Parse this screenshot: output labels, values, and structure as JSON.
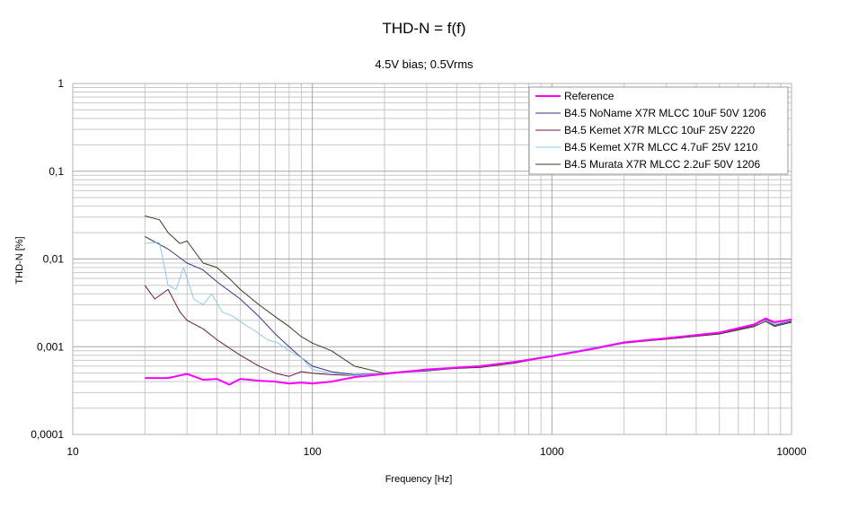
{
  "chart_data": {
    "type": "line",
    "title": "THD-N = f(f)",
    "subtitle": "4.5V bias; 0.5Vrms",
    "xlabel": "Frequency [Hz]",
    "ylabel": "THD-N [%]",
    "x_scale": "log",
    "y_scale": "log",
    "xlim": [
      10,
      10000
    ],
    "ylim": [
      0.0001,
      1
    ],
    "x_ticks": [
      "10",
      "100",
      "1000",
      "10000"
    ],
    "y_ticks": [
      "1",
      "0,1",
      "0,01",
      "0,001",
      "0,0001"
    ],
    "grid": true,
    "legend_position": "top-right",
    "series": [
      {
        "name": "Reference",
        "color": "#ff00ff",
        "x": [
          20,
          25,
          30,
          35,
          40,
          45,
          50,
          60,
          70,
          80,
          90,
          100,
          120,
          150,
          200,
          300,
          500,
          700,
          1000,
          1500,
          2000,
          3000,
          5000,
          7000,
          7800,
          8500,
          10000
        ],
        "y": [
          0.00044,
          0.00044,
          0.00049,
          0.00042,
          0.00043,
          0.00037,
          0.00043,
          0.00041,
          0.0004,
          0.00038,
          0.00039,
          0.00038,
          0.0004,
          0.00045,
          0.00049,
          0.00055,
          0.0006,
          0.00067,
          0.00078,
          0.00095,
          0.00112,
          0.00125,
          0.00145,
          0.0018,
          0.0021,
          0.0019,
          0.00205
        ]
      },
      {
        "name": "B4.5 NoName X7R MLCC 10uF 50V 1206",
        "color": "#3a3580",
        "x": [
          20,
          25,
          30,
          35,
          40,
          50,
          60,
          70,
          80,
          90,
          100,
          120,
          150,
          200,
          300,
          500,
          700,
          1000,
          1500,
          2000,
          3000,
          5000,
          7000,
          7800,
          8500,
          10000
        ],
        "y": [
          0.018,
          0.013,
          0.009,
          0.0075,
          0.0055,
          0.0035,
          0.0022,
          0.0014,
          0.001,
          0.00075,
          0.0006,
          0.00052,
          0.00048,
          0.0005,
          0.00053,
          0.0006,
          0.00068,
          0.00078,
          0.00098,
          0.00112,
          0.00125,
          0.00145,
          0.0018,
          0.002,
          0.00175,
          0.00195
        ]
      },
      {
        "name": "B4.5 Kemet X7R MLCC  10uF 25V 2220",
        "color": "#6b1a4a",
        "x": [
          20,
          22,
          25,
          28,
          30,
          35,
          40,
          50,
          60,
          70,
          80,
          90,
          100,
          120,
          150,
          200,
          300,
          500,
          700,
          1000,
          1500,
          2000,
          3000,
          5000,
          7000,
          7800,
          8500,
          10000
        ],
        "y": [
          0.005,
          0.0035,
          0.0045,
          0.0025,
          0.002,
          0.0016,
          0.0012,
          0.0008,
          0.0006,
          0.0005,
          0.00046,
          0.00052,
          0.0005,
          0.00048,
          0.00047,
          0.0005,
          0.00055,
          0.0006,
          0.00067,
          0.00078,
          0.00097,
          0.00112,
          0.00122,
          0.0014,
          0.00175,
          0.00205,
          0.0018,
          0.002
        ]
      },
      {
        "name": "B4.5 Kemet X7R MLCC  4.7uF 25V 1210",
        "color": "#8ecae6",
        "x": [
          20,
          23,
          25,
          27,
          29,
          32,
          35,
          38,
          42,
          47,
          52,
          58,
          65,
          72,
          80,
          90,
          100,
          120,
          150,
          200,
          300,
          500,
          700,
          1000,
          1500,
          2000,
          3000,
          5000,
          7000,
          7800,
          8500,
          10000
        ],
        "y": [
          0.015,
          0.0155,
          0.005,
          0.0045,
          0.008,
          0.0035,
          0.003,
          0.004,
          0.0025,
          0.0022,
          0.0018,
          0.0015,
          0.0012,
          0.0011,
          0.0009,
          0.00075,
          0.00055,
          0.0005,
          0.00047,
          0.0005,
          0.00054,
          0.0006,
          0.00068,
          0.0008,
          0.00098,
          0.00113,
          0.00125,
          0.00143,
          0.00178,
          0.002,
          0.0018,
          0.002
        ]
      },
      {
        "name": "B4.5 Murata X7R MLCC  2.2uF 50V 1206",
        "color": "#3b3b1f",
        "x": [
          20,
          23,
          25,
          28,
          30,
          35,
          40,
          45,
          50,
          60,
          70,
          80,
          90,
          100,
          120,
          150,
          200,
          300,
          500,
          700,
          1000,
          1500,
          2000,
          3000,
          5000,
          7000,
          7800,
          8500,
          10000
        ],
        "y": [
          0.031,
          0.028,
          0.02,
          0.015,
          0.016,
          0.009,
          0.008,
          0.006,
          0.0045,
          0.003,
          0.0022,
          0.0017,
          0.0013,
          0.0011,
          0.0009,
          0.0006,
          0.0005,
          0.00055,
          0.00058,
          0.00065,
          0.00078,
          0.00095,
          0.0011,
          0.00122,
          0.0014,
          0.0017,
          0.00195,
          0.0017,
          0.0019
        ]
      }
    ]
  }
}
